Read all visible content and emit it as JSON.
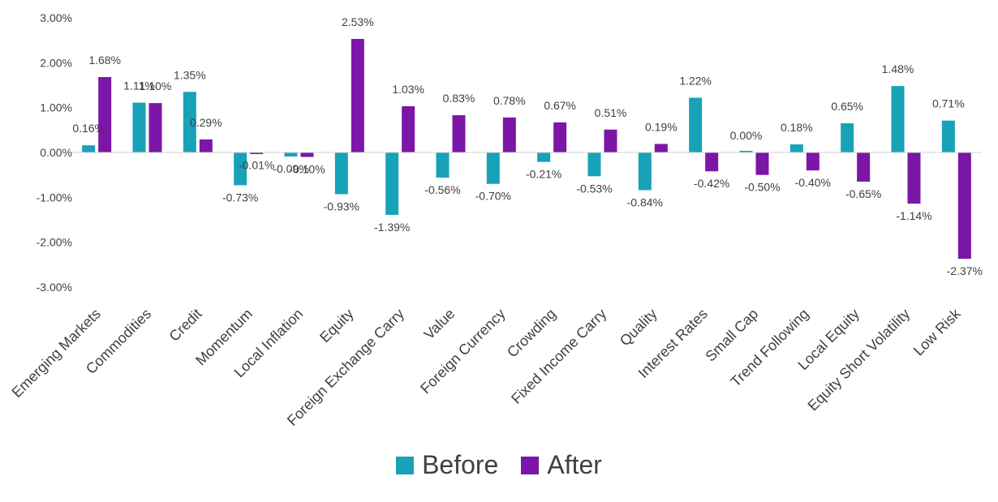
{
  "chart_data": {
    "type": "bar",
    "categories": [
      "Emerging Markets",
      "Commodities",
      "Credit",
      "Momentum",
      "Local Inflation",
      "Equity",
      "Foreign Exchange Carry",
      "Value",
      "Foreign Currency",
      "Crowding",
      "Fixed Income Carry",
      "Quality",
      "Interest Rates",
      "Small Cap",
      "Trend Following",
      "Local Equity",
      "Equity Short Volatility",
      "Low Risk"
    ],
    "series": [
      {
        "name": "Before",
        "color": "#17a2b8",
        "values": [
          0.16,
          1.11,
          1.35,
          -0.73,
          -0.09,
          -0.93,
          -1.39,
          -0.56,
          -0.7,
          -0.21,
          -0.53,
          -0.84,
          1.22,
          0.0,
          0.18,
          0.65,
          1.48,
          0.71
        ],
        "labels": [
          "0.16%",
          "1.11%",
          "1.35%",
          "-0.73%",
          "-0.09%",
          "-0.93%",
          "-1.39%",
          "-0.56%",
          "-0.70%",
          "-0.21%",
          "-0.53%",
          "-0.84%",
          "1.22%",
          "0.00%",
          "0.18%",
          "0.65%",
          "1.48%",
          "0.71%"
        ]
      },
      {
        "name": "After",
        "color": "#7b16a8",
        "values": [
          1.68,
          1.1,
          0.29,
          -0.01,
          -0.1,
          2.53,
          1.03,
          0.83,
          0.78,
          0.67,
          0.51,
          0.19,
          -0.42,
          -0.5,
          -0.4,
          -0.65,
          -1.14,
          -2.37
        ],
        "labels": [
          "1.68%",
          "1.10%",
          "0.29%",
          "-0.01%",
          "-0.10%",
          "2.53%",
          "1.03%",
          "0.83%",
          "0.78%",
          "0.67%",
          "0.51%",
          "0.19%",
          "-0.42%",
          "-0.50%",
          "-0.40%",
          "-0.65%",
          "-1.14%",
          "-2.37%"
        ]
      }
    ],
    "yticks": [
      "3.00%",
      "2.00%",
      "1.00%",
      "0.00%",
      "-1.00%",
      "-2.00%",
      "-3.00%"
    ],
    "ylim": [
      -3,
      3
    ],
    "legend": "bottom-center",
    "grid": false
  }
}
